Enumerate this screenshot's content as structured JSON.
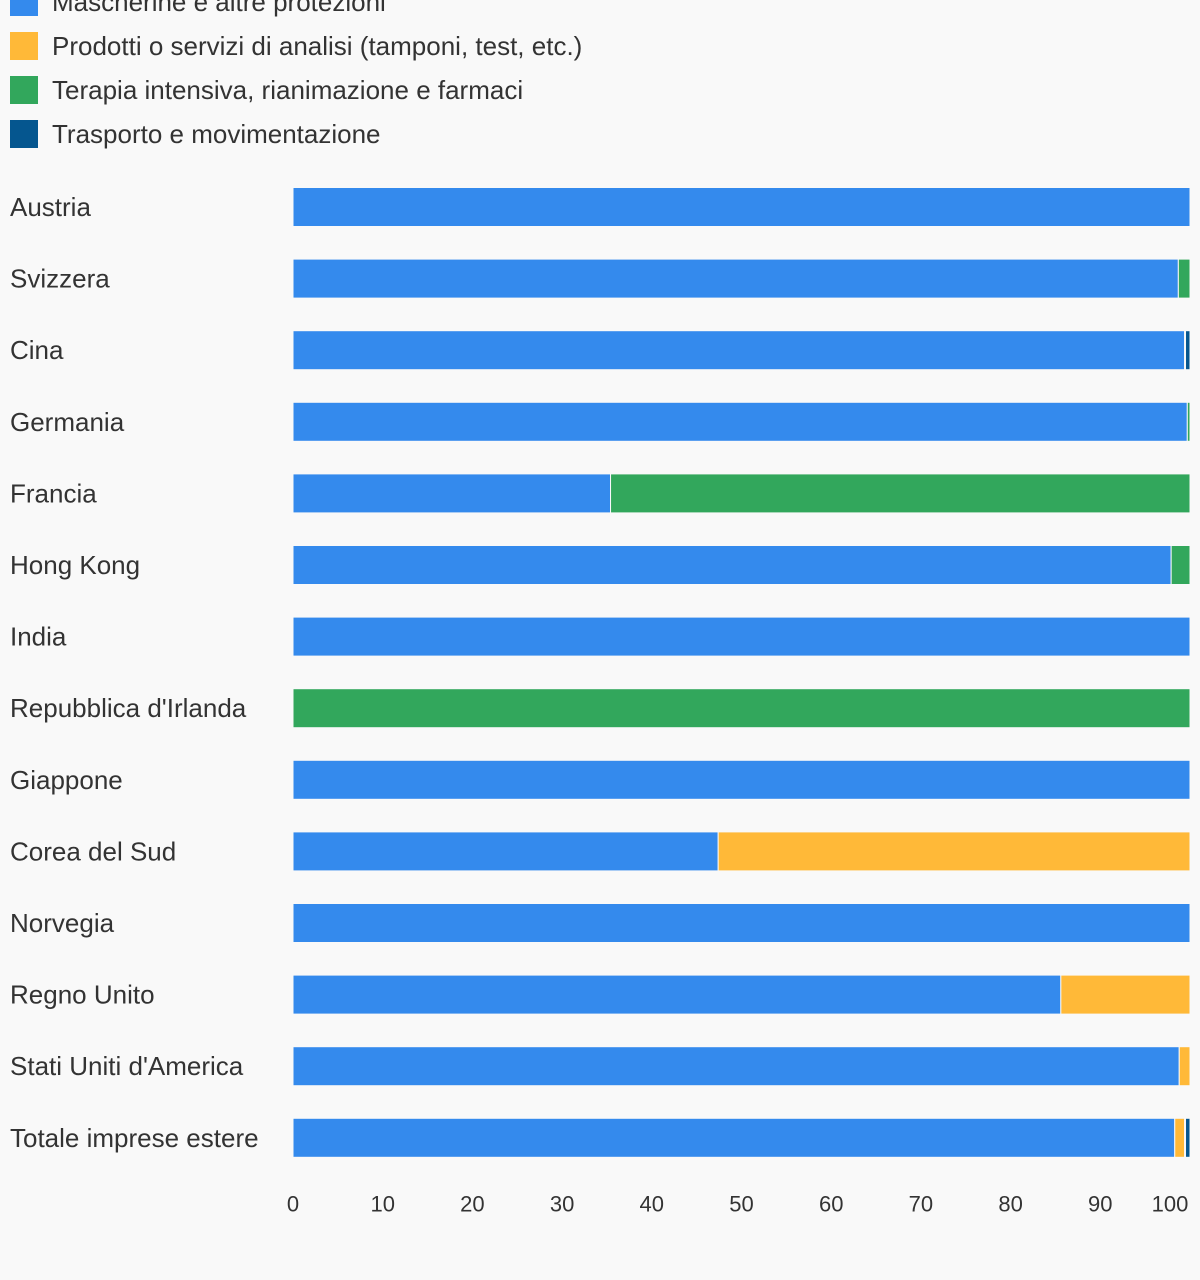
{
  "chart_data": {
    "type": "bar",
    "orientation": "horizontal",
    "stacked": true,
    "title": "",
    "xlabel": "",
    "ylabel": "",
    "xlim": [
      0,
      100
    ],
    "grid": false,
    "legend_position": "top-left",
    "categories": [
      "Austria",
      "Svizzera",
      "Cina",
      "Germania",
      "Francia",
      "Hong Kong",
      "India",
      "Repubblica d'Irlanda",
      "Giappone",
      "Corea del Sud",
      "Norvegia",
      "Regno Unito",
      "Stati Uniti d'America",
      "Totale imprese estere"
    ],
    "series": [
      {
        "name": "Mascherine e altre protezioni",
        "color": "#348aed",
        "values": [
          100,
          98.7,
          99.4,
          99.7,
          35.4,
          97.9,
          100,
          0,
          100,
          47.4,
          100,
          85.6,
          98.8,
          98.3
        ]
      },
      {
        "name": "Prodotti o servizi di analisi (tamponi, test, etc.)",
        "color": "#ffb938",
        "values": [
          0,
          0,
          0,
          0,
          0,
          0,
          0,
          0,
          0,
          52.6,
          0,
          14.4,
          1.2,
          1.1
        ]
      },
      {
        "name": "Terapia intensiva, rianimazione e farmaci",
        "color": "#32a75c",
        "values": [
          0,
          1.3,
          0.1,
          0.3,
          64.6,
          2.1,
          0,
          100,
          0,
          0,
          0,
          0,
          0,
          0.1
        ]
      },
      {
        "name": "Trasporto e movimentazione",
        "color": "#05568f",
        "values": [
          0,
          0,
          0.5,
          0,
          0,
          0,
          0,
          0,
          0,
          0,
          0,
          0,
          0,
          0.5
        ]
      }
    ],
    "x_ticks": [
      "0",
      "10",
      "20",
      "30",
      "40",
      "50",
      "60",
      "70",
      "80",
      "90",
      "100"
    ]
  }
}
